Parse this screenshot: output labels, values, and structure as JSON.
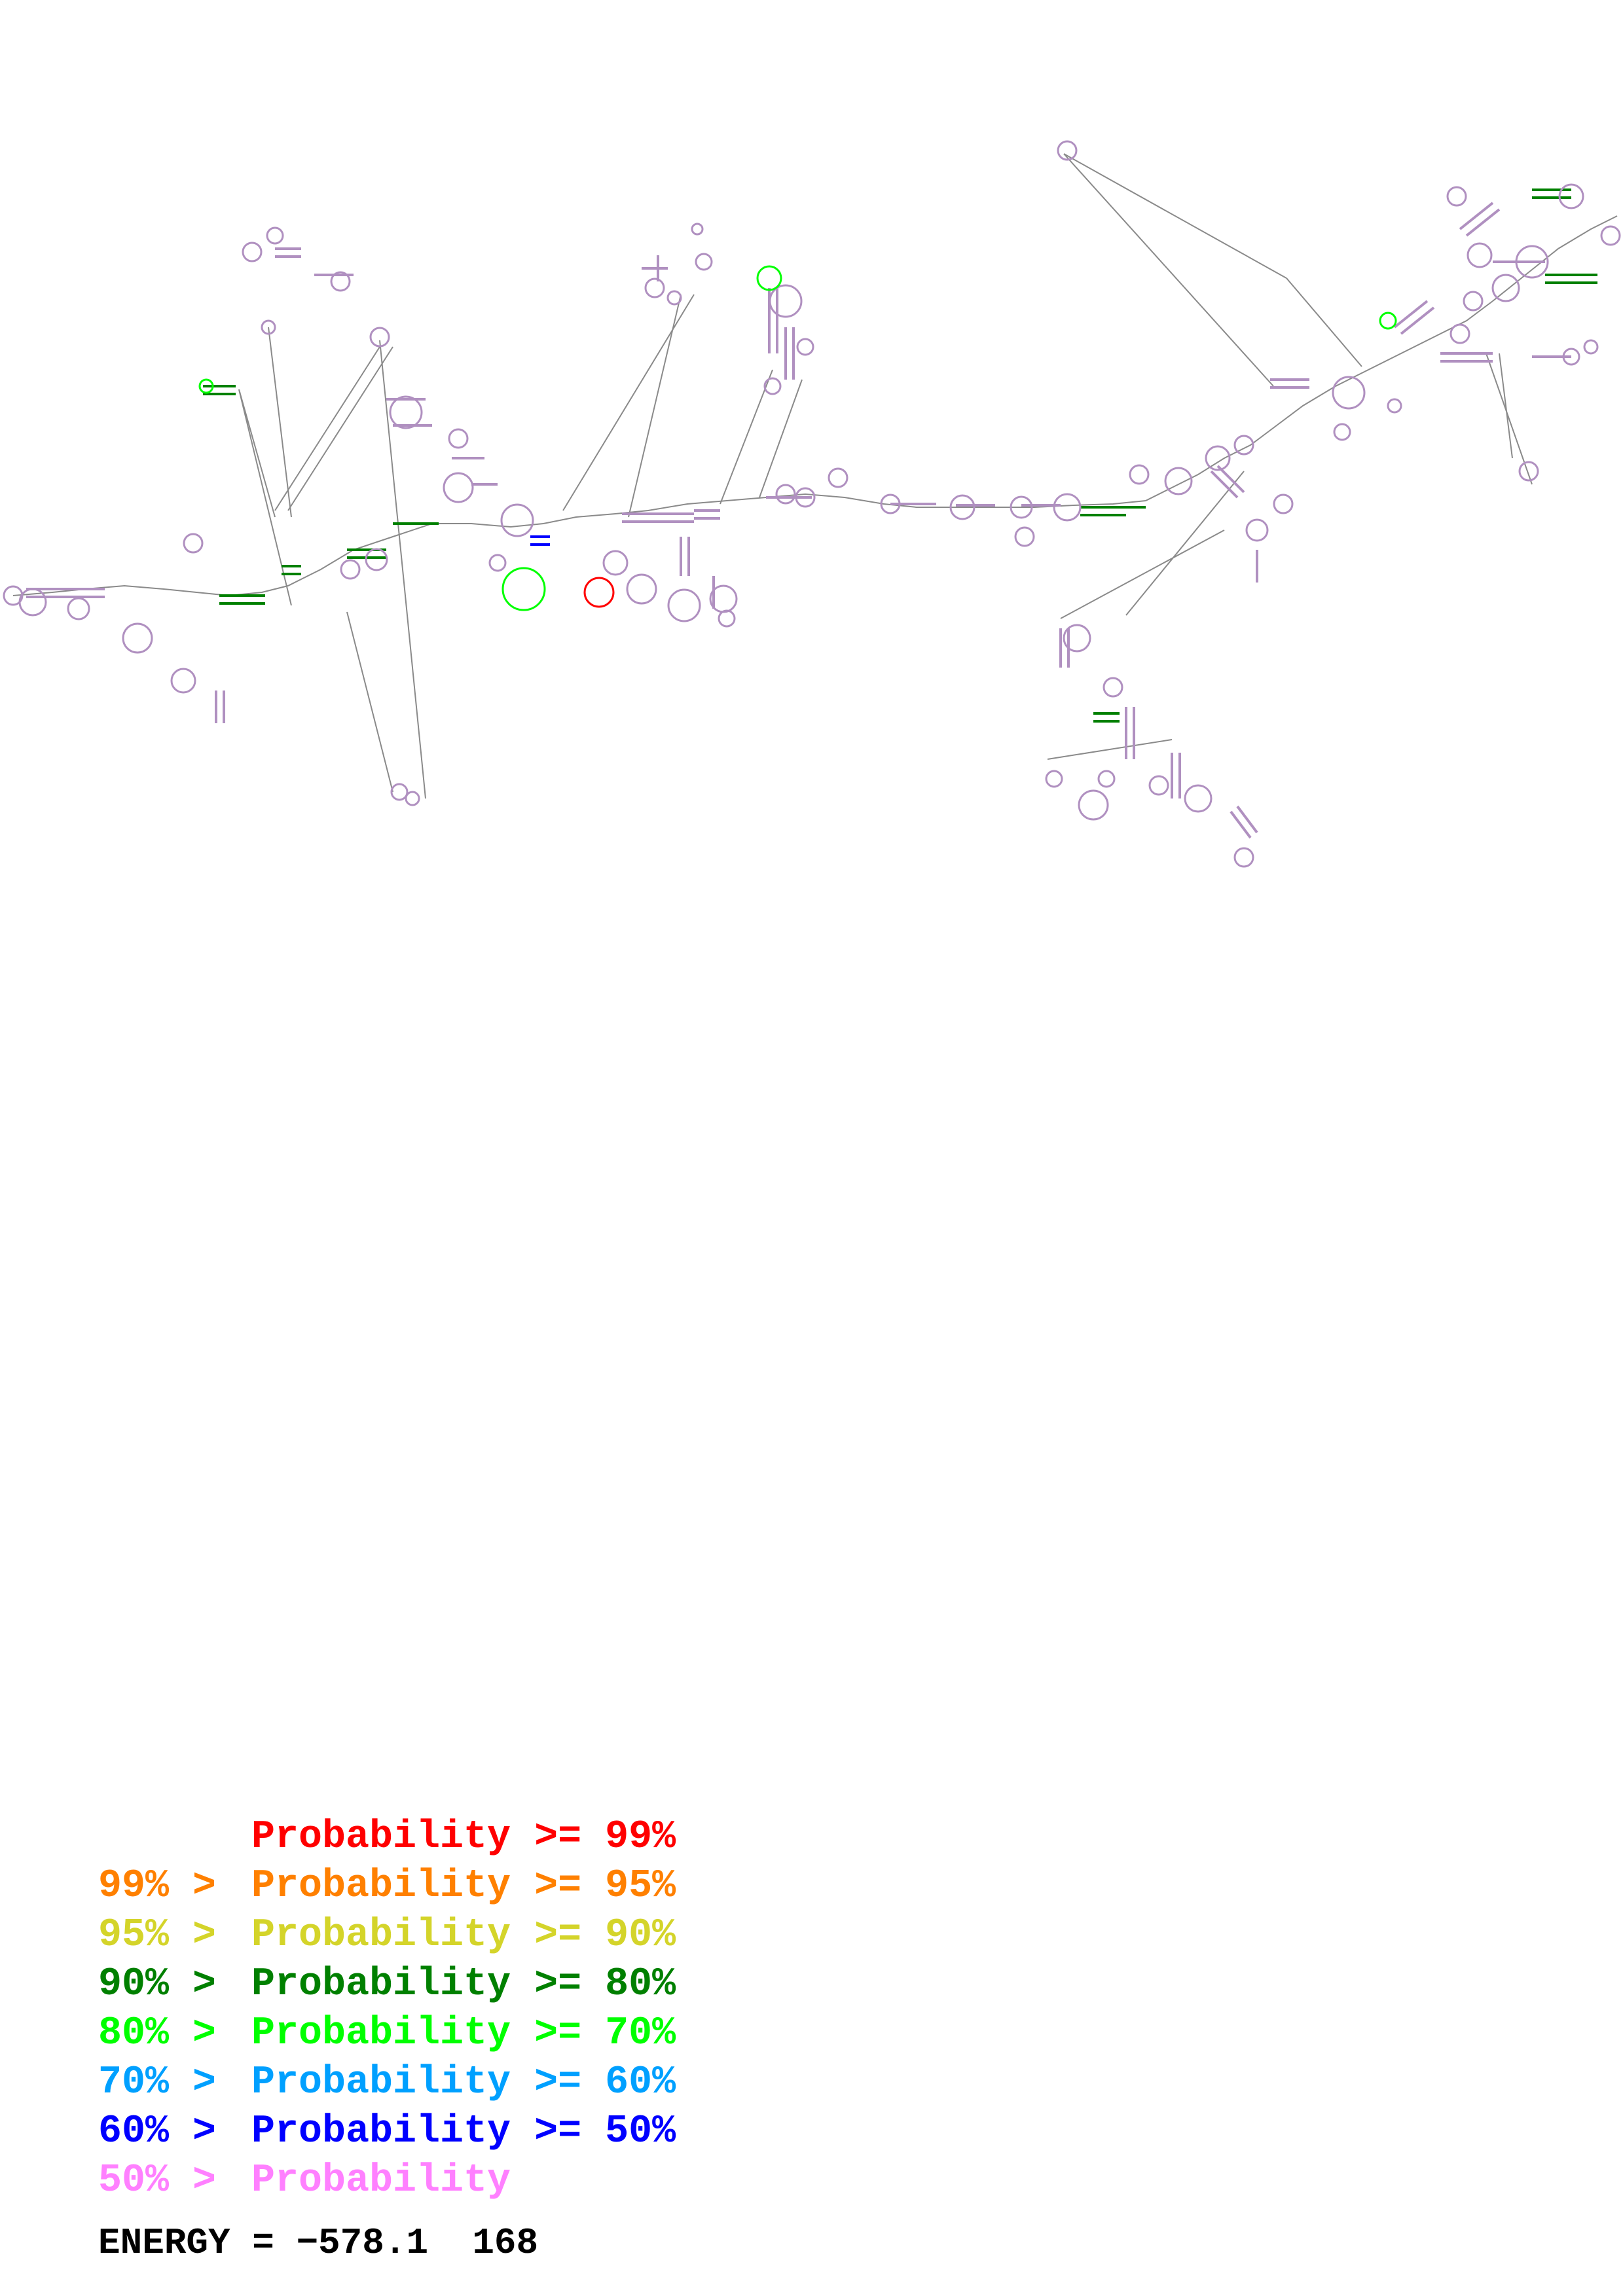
{
  "legend": [
    {
      "prefix": "",
      "label": "Probability",
      "suffix": ">= 99%",
      "color": "#ff0000"
    },
    {
      "prefix": "99% >",
      "label": "Probability",
      "suffix": ">= 95%",
      "color": "#ff8000"
    },
    {
      "prefix": "95% >",
      "label": "Probability",
      "suffix": ">= 90%",
      "color": "#d4d42a"
    },
    {
      "prefix": "90% >",
      "label": "Probability",
      "suffix": ">= 80%",
      "color": "#008000"
    },
    {
      "prefix": "80% >",
      "label": "Probability",
      "suffix": ">= 70%",
      "color": "#00ff00"
    },
    {
      "prefix": "70% >",
      "label": "Probability",
      "suffix": ">= 60%",
      "color": "#00a0ff"
    },
    {
      "prefix": "60% >",
      "label": "Probability",
      "suffix": ">= 50%",
      "color": "#0000ff"
    },
    {
      "prefix": "50% >",
      "label": "Probability",
      "suffix": "",
      "color": "#ff80ff"
    }
  ],
  "energy": {
    "label": "ENERGY = −578.1",
    "count": "168"
  },
  "colors": {
    "backbone": "#8a8a8a",
    "nucleotide_default": "#b090c0"
  }
}
